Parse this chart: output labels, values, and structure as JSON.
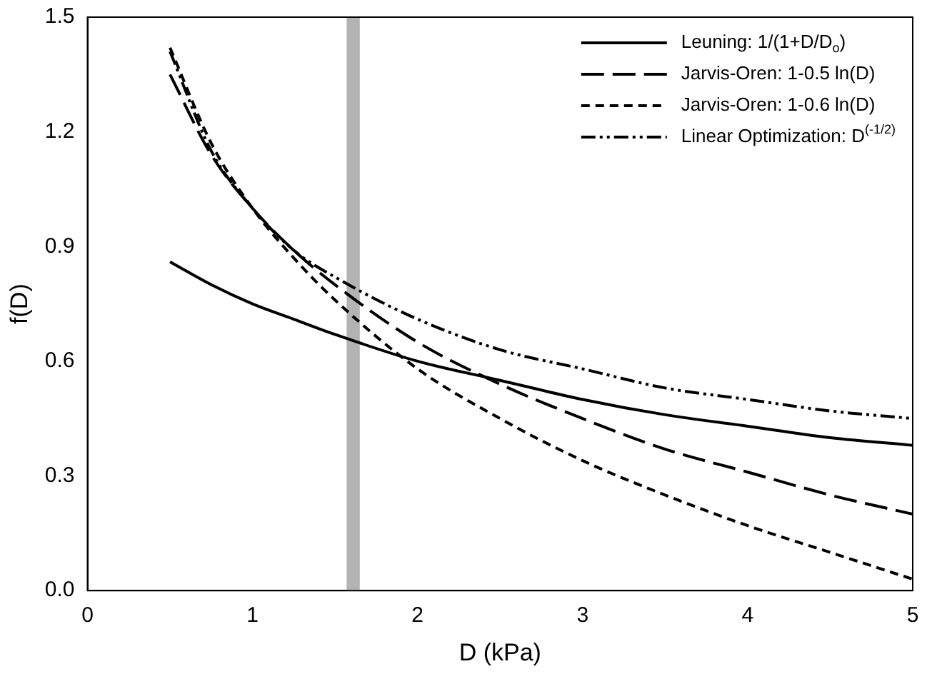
{
  "chart_data": {
    "type": "line",
    "xlabel": "D (kPa)",
    "ylabel": "f(D)",
    "x": [
      0.5,
      0.75,
      1,
      1.25,
      1.5,
      2,
      2.5,
      3,
      3.5,
      4,
      4.5,
      5
    ],
    "series": [
      {
        "name": "Leuning: 1/(1+D/D$_{o}$)",
        "color": "#000000",
        "line_style": "solid",
        "values": [
          0.86,
          0.8,
          0.75,
          0.71,
          0.67,
          0.6,
          0.55,
          0.5,
          0.46,
          0.43,
          0.4,
          0.38
        ]
      },
      {
        "name": "Jarvis-Oren: 1-0.5 ln(D)",
        "color": "#000000",
        "line_style": "dashed",
        "values": [
          1.35,
          1.14,
          1.0,
          0.89,
          0.8,
          0.65,
          0.54,
          0.45,
          0.37,
          0.31,
          0.25,
          0.2
        ]
      },
      {
        "name": "Jarvis-Oren: 1-0.6 ln(D)",
        "color": "#000000",
        "line_style": "dashed",
        "values": [
          1.42,
          1.17,
          1.0,
          0.87,
          0.76,
          0.58,
          0.45,
          0.34,
          0.25,
          0.17,
          0.1,
          0.03
        ]
      },
      {
        "name": "Linear Optimization: D$^{(-1/2)}$",
        "color": "#000000",
        "line_style": "dotted",
        "values": [
          1.41,
          1.15,
          1.0,
          0.89,
          0.82,
          0.71,
          0.63,
          0.58,
          0.53,
          0.5,
          0.47,
          0.45
        ]
      }
    ],
    "bands": [
      {
        "axis": "x",
        "from": 1.57,
        "to": 1.65,
        "color": "#b3b3b3"
      }
    ],
    "xlim": [
      0,
      5
    ],
    "xticks": [
      0,
      1,
      2,
      3,
      4,
      5
    ],
    "ylim": [
      0,
      1.5
    ],
    "yticks": [
      {
        "value": 0,
        "label": "0.0"
      },
      {
        "value": 0.3,
        "label": "0.3"
      },
      {
        "value": 0.6,
        "label": "0.6"
      },
      {
        "value": 0.9,
        "label": "0.9"
      },
      {
        "value": 1.2,
        "label": "1.2"
      },
      {
        "value": 1.5,
        "label": "1.5"
      }
    ],
    "grid": false,
    "legend": "top right",
    "marker": "none"
  }
}
